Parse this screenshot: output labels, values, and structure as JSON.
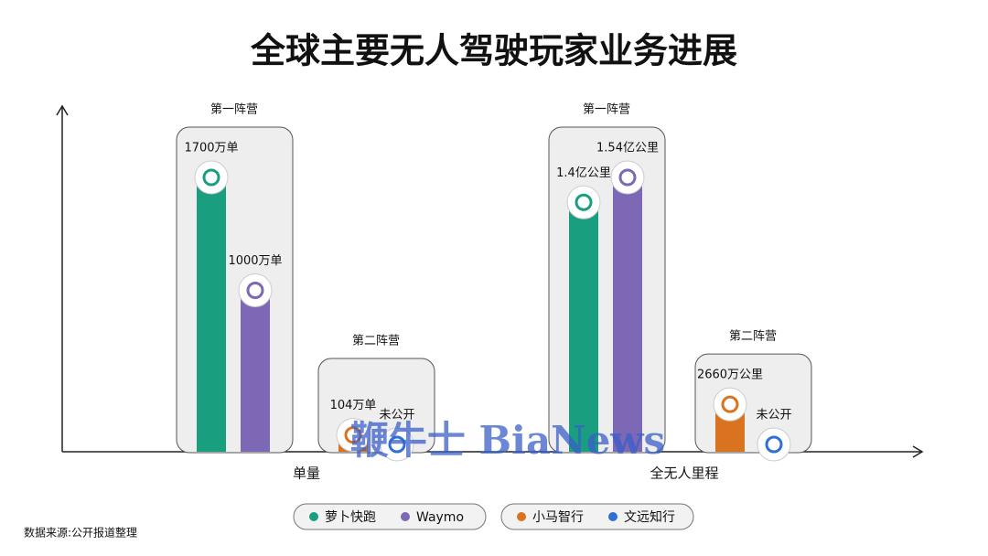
{
  "chart_data": {
    "type": "tiered-bar",
    "title": "全球主要无人驾驶玩家业务进展",
    "source": "数据来源:公开报道整理",
    "watermark": "鞭牛士 BiaNews",
    "series": [
      {
        "name": "萝卜快跑",
        "color": "#1a9e80"
      },
      {
        "name": "Waymo",
        "color": "#7d68b5"
      },
      {
        "name": "小马智行",
        "color": "#d9731f"
      },
      {
        "name": "文远知行",
        "color": "#2f6fd6"
      }
    ],
    "tiers": [
      "第一阵营",
      "第二阵营"
    ],
    "groups": [
      {
        "name": "单量",
        "values": [
          1700,
          1000,
          104,
          null
        ],
        "value_labels": [
          "1700万单",
          "1000万单",
          "104万单",
          "未公开"
        ]
      },
      {
        "name": "全无人里程",
        "values": [
          14000,
          15400,
          2660,
          null
        ],
        "value_labels": [
          "1.4亿公里",
          "1.54亿公里",
          "2660万公里",
          "未公开"
        ]
      }
    ]
  }
}
